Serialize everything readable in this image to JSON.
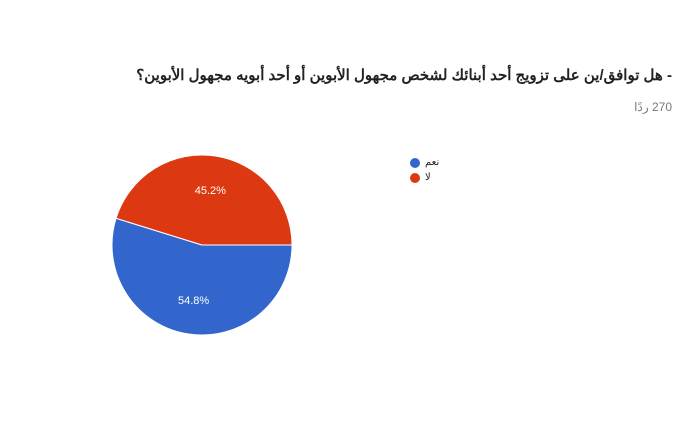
{
  "chart_data": {
    "type": "pie",
    "title": "- هل توافق/ين على تزويج أحد أبنائك لشخص مجهول الأبوين أو أحد أبويه مجهول الأبوين؟",
    "response_count": "270 ردًا",
    "categories": [
      "نعم",
      "لا"
    ],
    "values": [
      54.8,
      45.2
    ],
    "labels": [
      "54.8%",
      "45.2%"
    ],
    "colors": [
      "#3366cc",
      "#dc3912"
    ],
    "legend_position": "right"
  }
}
